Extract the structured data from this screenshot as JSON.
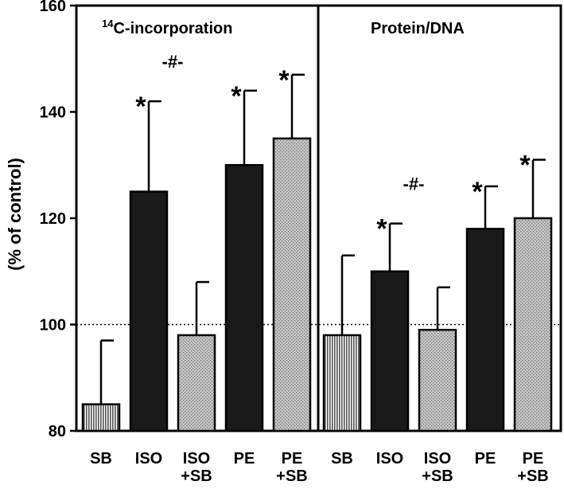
{
  "chart_data": {
    "type": "bar",
    "ylabel": "(% of control)",
    "ylim": [
      80,
      160
    ],
    "y_ticks": [
      "80",
      "100",
      "120",
      "140",
      "160"
    ],
    "reference_line": 100,
    "grid": false,
    "panels": [
      {
        "title_superscript": "14",
        "title": "C-incorporation",
        "categories": [
          {
            "line1": "SB",
            "line2": ""
          },
          {
            "line1": "ISO",
            "line2": ""
          },
          {
            "line1": "ISO",
            "line2": "+SB"
          },
          {
            "line1": "PE",
            "line2": ""
          },
          {
            "line1": "PE",
            "line2": "+SB"
          }
        ],
        "values": [
          85,
          125,
          98,
          130,
          135
        ],
        "errors": [
          12,
          17,
          10,
          14,
          12
        ],
        "fills": [
          "vertical-hatch",
          "solid-black",
          "gray-dots",
          "solid-black",
          "gray-dots"
        ],
        "significance": [
          "",
          "*",
          "",
          "*",
          "*"
        ],
        "comparison_label": "-#-",
        "comparison_between": [
          1,
          2
        ]
      },
      {
        "title_superscript": "",
        "title": "Protein/DNA",
        "categories": [
          {
            "line1": "SB",
            "line2": ""
          },
          {
            "line1": "ISO",
            "line2": ""
          },
          {
            "line1": "ISO",
            "line2": "+SB"
          },
          {
            "line1": "PE",
            "line2": ""
          },
          {
            "line1": "PE",
            "line2": "+SB"
          }
        ],
        "values": [
          98,
          110,
          99,
          118,
          120
        ],
        "errors": [
          15,
          9,
          8,
          8,
          11
        ],
        "fills": [
          "vertical-hatch",
          "solid-black",
          "gray-dots",
          "solid-black",
          "gray-dots"
        ],
        "significance": [
          "",
          "*",
          "",
          "*",
          "*"
        ],
        "comparison_label": "-#-",
        "comparison_between": [
          1,
          2
        ]
      }
    ],
    "colors": {
      "solid": "#1a1a1a",
      "dots": "#bdbdbd",
      "hatch": "#8a8a8a"
    }
  }
}
